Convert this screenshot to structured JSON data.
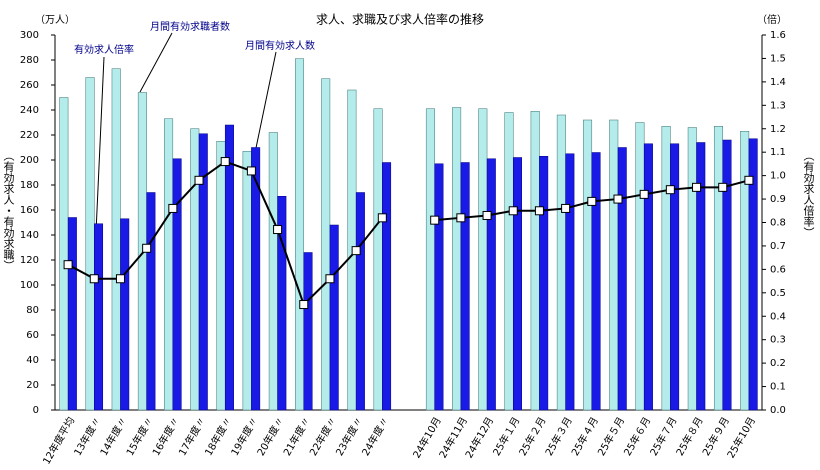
{
  "chart_data": {
    "type": "bar-line",
    "title": "求人、求職及び求人倍率の推移",
    "y_unit": "（万人）",
    "y2_unit": "（倍）",
    "ylabel": "（有効求人・有効求職）",
    "y2label": "（有効求人倍率）",
    "categories": [
      "12年度平均",
      "13年度〃",
      "14年度〃",
      "15年度〃",
      "16年度〃",
      "17年度〃",
      "18年度〃",
      "19年度〃",
      "20年度〃",
      "21年度〃",
      "22年度〃",
      "23年度〃",
      "24年度〃",
      null,
      "24年10月",
      "24年11月",
      "24年12月",
      "25年１月",
      "25年２月",
      "25年３月",
      "25年４月",
      "25年５月",
      "25年６月",
      "25年７月",
      "25年８月",
      "25年９月",
      "25年10月"
    ],
    "series": [
      {
        "name": "月間有効求職者数",
        "color": "#b4ecec",
        "values": [
          250,
          266,
          273,
          254,
          233,
          225,
          215,
          207,
          222,
          281,
          265,
          256,
          241,
          null,
          241,
          242,
          241,
          238,
          239,
          236,
          232,
          232,
          230,
          227,
          226,
          227,
          223
        ]
      },
      {
        "name": "月間有効求人数",
        "color": "#1a1ae6",
        "values": [
          154,
          149,
          153,
          174,
          201,
          221,
          228,
          210,
          171,
          126,
          148,
          174,
          198,
          null,
          197,
          198,
          201,
          202,
          203,
          205,
          206,
          210,
          213,
          213,
          214,
          216,
          217
        ]
      },
      {
        "name": "有効求人倍率",
        "color": "#000000",
        "axis": "y2",
        "values": [
          0.62,
          0.56,
          0.56,
          0.69,
          0.86,
          0.98,
          1.06,
          1.02,
          0.77,
          0.45,
          0.56,
          0.68,
          0.82,
          null,
          0.81,
          0.82,
          0.83,
          0.85,
          0.85,
          0.86,
          0.89,
          0.9,
          0.92,
          0.94,
          0.95,
          0.95,
          0.98
        ]
      }
    ],
    "ylim": [
      0,
      300
    ],
    "yticks": [
      0,
      20,
      40,
      60,
      80,
      100,
      120,
      140,
      160,
      180,
      200,
      220,
      240,
      260,
      280,
      300
    ],
    "y2lim": [
      0,
      1.6
    ],
    "y2ticks": [
      {
        "value": 0,
        "label": "0.0"
      },
      {
        "value": 0.1,
        "label": "0.1"
      },
      {
        "value": 0.2,
        "label": "0.2"
      },
      {
        "value": 0.3,
        "label": "0.3"
      },
      {
        "value": 0.4,
        "label": "0.4"
      },
      {
        "value": 0.5,
        "label": "0.5"
      },
      {
        "value": 0.6,
        "label": "0.6"
      },
      {
        "value": 0.7,
        "label": "0.7"
      },
      {
        "value": 0.8,
        "label": "0.8"
      },
      {
        "value": 0.9,
        "label": "0.9"
      },
      {
        "value": 1,
        "label": "1.0"
      },
      {
        "value": 1.1,
        "label": "1.1"
      },
      {
        "value": 1.2,
        "label": "1.2"
      },
      {
        "value": 1.3,
        "label": "1.3"
      },
      {
        "value": 1.4,
        "label": "1.4"
      },
      {
        "value": 1.5,
        "label": "1.5"
      },
      {
        "value": 1.6,
        "label": "1.6"
      }
    ],
    "grid": false
  }
}
